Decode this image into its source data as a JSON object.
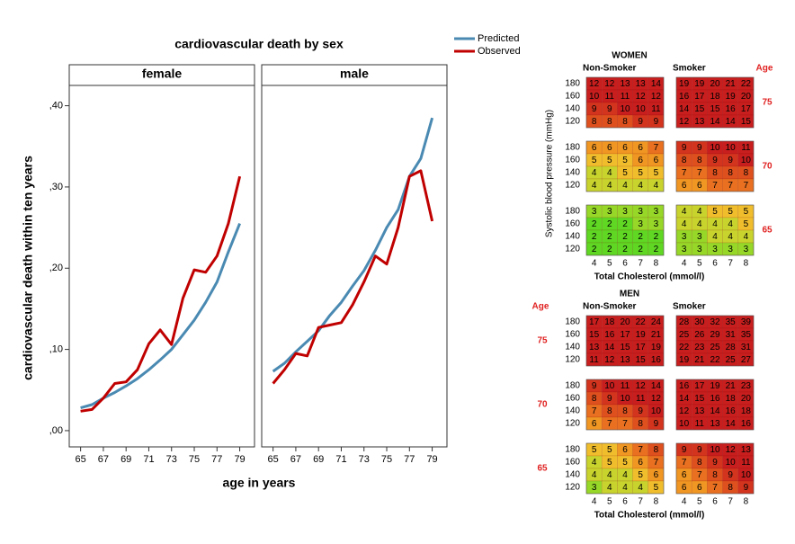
{
  "chart_data": {
    "type": "line",
    "title": "cardiovascular death by sex",
    "x_label": "age in years",
    "y_label": "cardiovascular death within ten years",
    "panels": [
      "female",
      "male"
    ],
    "x": [
      65,
      66,
      67,
      68,
      69,
      70,
      71,
      72,
      73,
      74,
      75,
      76,
      77,
      78,
      79
    ],
    "xlim": [
      64,
      80.3
    ],
    "xticks": [
      65,
      67,
      69,
      71,
      73,
      75,
      77,
      79
    ],
    "ylim": [
      -0.02,
      0.425
    ],
    "yticks": [
      {
        "value": 0,
        "label": ",00"
      },
      {
        "value": 0.1,
        "label": ",10"
      },
      {
        "value": 0.2,
        "label": ",20"
      },
      {
        "value": 0.3,
        "label": ",30"
      },
      {
        "value": 0.4,
        "label": ",40"
      }
    ],
    "grid": false,
    "series": [
      {
        "name": "Predicted",
        "color": "#4a8ab2",
        "values": [
          [
            0.028,
            0.032,
            0.04,
            0.047,
            0.055,
            0.064,
            0.075,
            0.087,
            0.1,
            0.118,
            0.136,
            0.158,
            0.183,
            0.22,
            0.255
          ],
          [
            0.073,
            0.083,
            0.097,
            0.11,
            0.123,
            0.142,
            0.158,
            0.178,
            0.197,
            0.222,
            0.25,
            0.272,
            0.313,
            0.335,
            0.385
          ]
        ]
      },
      {
        "name": "Observed",
        "color": "#c00000",
        "values": [
          [
            0.024,
            0.026,
            0.04,
            0.058,
            0.06,
            0.075,
            0.107,
            0.124,
            0.106,
            0.163,
            0.198,
            0.195,
            0.215,
            0.255,
            0.313
          ],
          [
            0.058,
            0.075,
            0.095,
            0.092,
            0.127,
            0.13,
            0.133,
            0.155,
            0.183,
            0.215,
            0.205,
            0.25,
            0.313,
            0.32,
            0.258
          ]
        ]
      }
    ]
  },
  "risk_tables": [
    {
      "title": "WOMEN",
      "groups": [
        "Non-Smoker",
        "Smoker"
      ],
      "age_header": "Age",
      "age_side": "right",
      "y_label": "Systolic blood pressure (mmHg)",
      "x_label": "Total Cholesterol (mmol/l)",
      "bp": [
        180,
        160,
        140,
        120
      ],
      "cholesterol": [
        4,
        5,
        6,
        7,
        8
      ],
      "ages": [
        75,
        70,
        65
      ],
      "non_smoker": [
        [
          [
            12,
            12,
            13,
            13,
            14
          ],
          [
            10,
            11,
            11,
            12,
            12
          ],
          [
            9,
            9,
            10,
            10,
            11
          ],
          [
            8,
            8,
            8,
            9,
            9
          ]
        ],
        [
          [
            6,
            6,
            6,
            6,
            7
          ],
          [
            5,
            5,
            5,
            6,
            6
          ],
          [
            4,
            4,
            5,
            5,
            5
          ],
          [
            4,
            4,
            4,
            4,
            4
          ]
        ],
        [
          [
            3,
            3,
            3,
            3,
            3
          ],
          [
            2,
            2,
            2,
            3,
            3
          ],
          [
            2,
            2,
            2,
            2,
            2
          ],
          [
            2,
            2,
            2,
            2,
            2
          ]
        ]
      ],
      "smoker": [
        [
          [
            19,
            19,
            20,
            21,
            22
          ],
          [
            16,
            17,
            18,
            19,
            20
          ],
          [
            14,
            15,
            15,
            16,
            17
          ],
          [
            12,
            13,
            14,
            14,
            15
          ]
        ],
        [
          [
            9,
            9,
            10,
            10,
            11
          ],
          [
            8,
            8,
            9,
            9,
            10
          ],
          [
            7,
            7,
            8,
            8,
            8
          ],
          [
            6,
            6,
            7,
            7,
            7
          ]
        ],
        [
          [
            4,
            4,
            5,
            5,
            5
          ],
          [
            4,
            4,
            4,
            4,
            5
          ],
          [
            3,
            3,
            4,
            4,
            4
          ],
          [
            3,
            3,
            3,
            3,
            3
          ]
        ]
      ]
    },
    {
      "title": "MEN",
      "groups": [
        "Non-Smoker",
        "Smoker"
      ],
      "age_header": "Age",
      "age_side": "left",
      "x_label": "Total Cholesterol (mmol/l)",
      "bp": [
        180,
        160,
        140,
        120
      ],
      "cholesterol": [
        4,
        5,
        6,
        7,
        8
      ],
      "ages": [
        75,
        70,
        65
      ],
      "non_smoker": [
        [
          [
            17,
            18,
            20,
            22,
            24
          ],
          [
            15,
            16,
            17,
            19,
            21
          ],
          [
            13,
            14,
            15,
            17,
            19
          ],
          [
            11,
            12,
            13,
            15,
            16
          ]
        ],
        [
          [
            9,
            10,
            11,
            12,
            14
          ],
          [
            8,
            9,
            10,
            11,
            12
          ],
          [
            7,
            8,
            8,
            9,
            10
          ],
          [
            6,
            7,
            7,
            8,
            9
          ]
        ],
        [
          [
            5,
            5,
            6,
            7,
            8
          ],
          [
            4,
            5,
            5,
            6,
            7
          ],
          [
            4,
            4,
            4,
            5,
            6
          ],
          [
            3,
            4,
            4,
            4,
            5
          ]
        ]
      ],
      "smoker": [
        [
          [
            28,
            30,
            32,
            35,
            39
          ],
          [
            25,
            26,
            29,
            31,
            35
          ],
          [
            22,
            23,
            25,
            28,
            31
          ],
          [
            19,
            21,
            22,
            25,
            27
          ]
        ],
        [
          [
            16,
            17,
            19,
            21,
            23
          ],
          [
            14,
            15,
            16,
            18,
            20
          ],
          [
            12,
            13,
            14,
            16,
            18
          ],
          [
            10,
            11,
            13,
            14,
            16
          ]
        ],
        [
          [
            9,
            9,
            10,
            12,
            13
          ],
          [
            7,
            8,
            9,
            10,
            11
          ],
          [
            6,
            7,
            8,
            9,
            10
          ],
          [
            6,
            6,
            7,
            8,
            9
          ]
        ]
      ]
    }
  ]
}
